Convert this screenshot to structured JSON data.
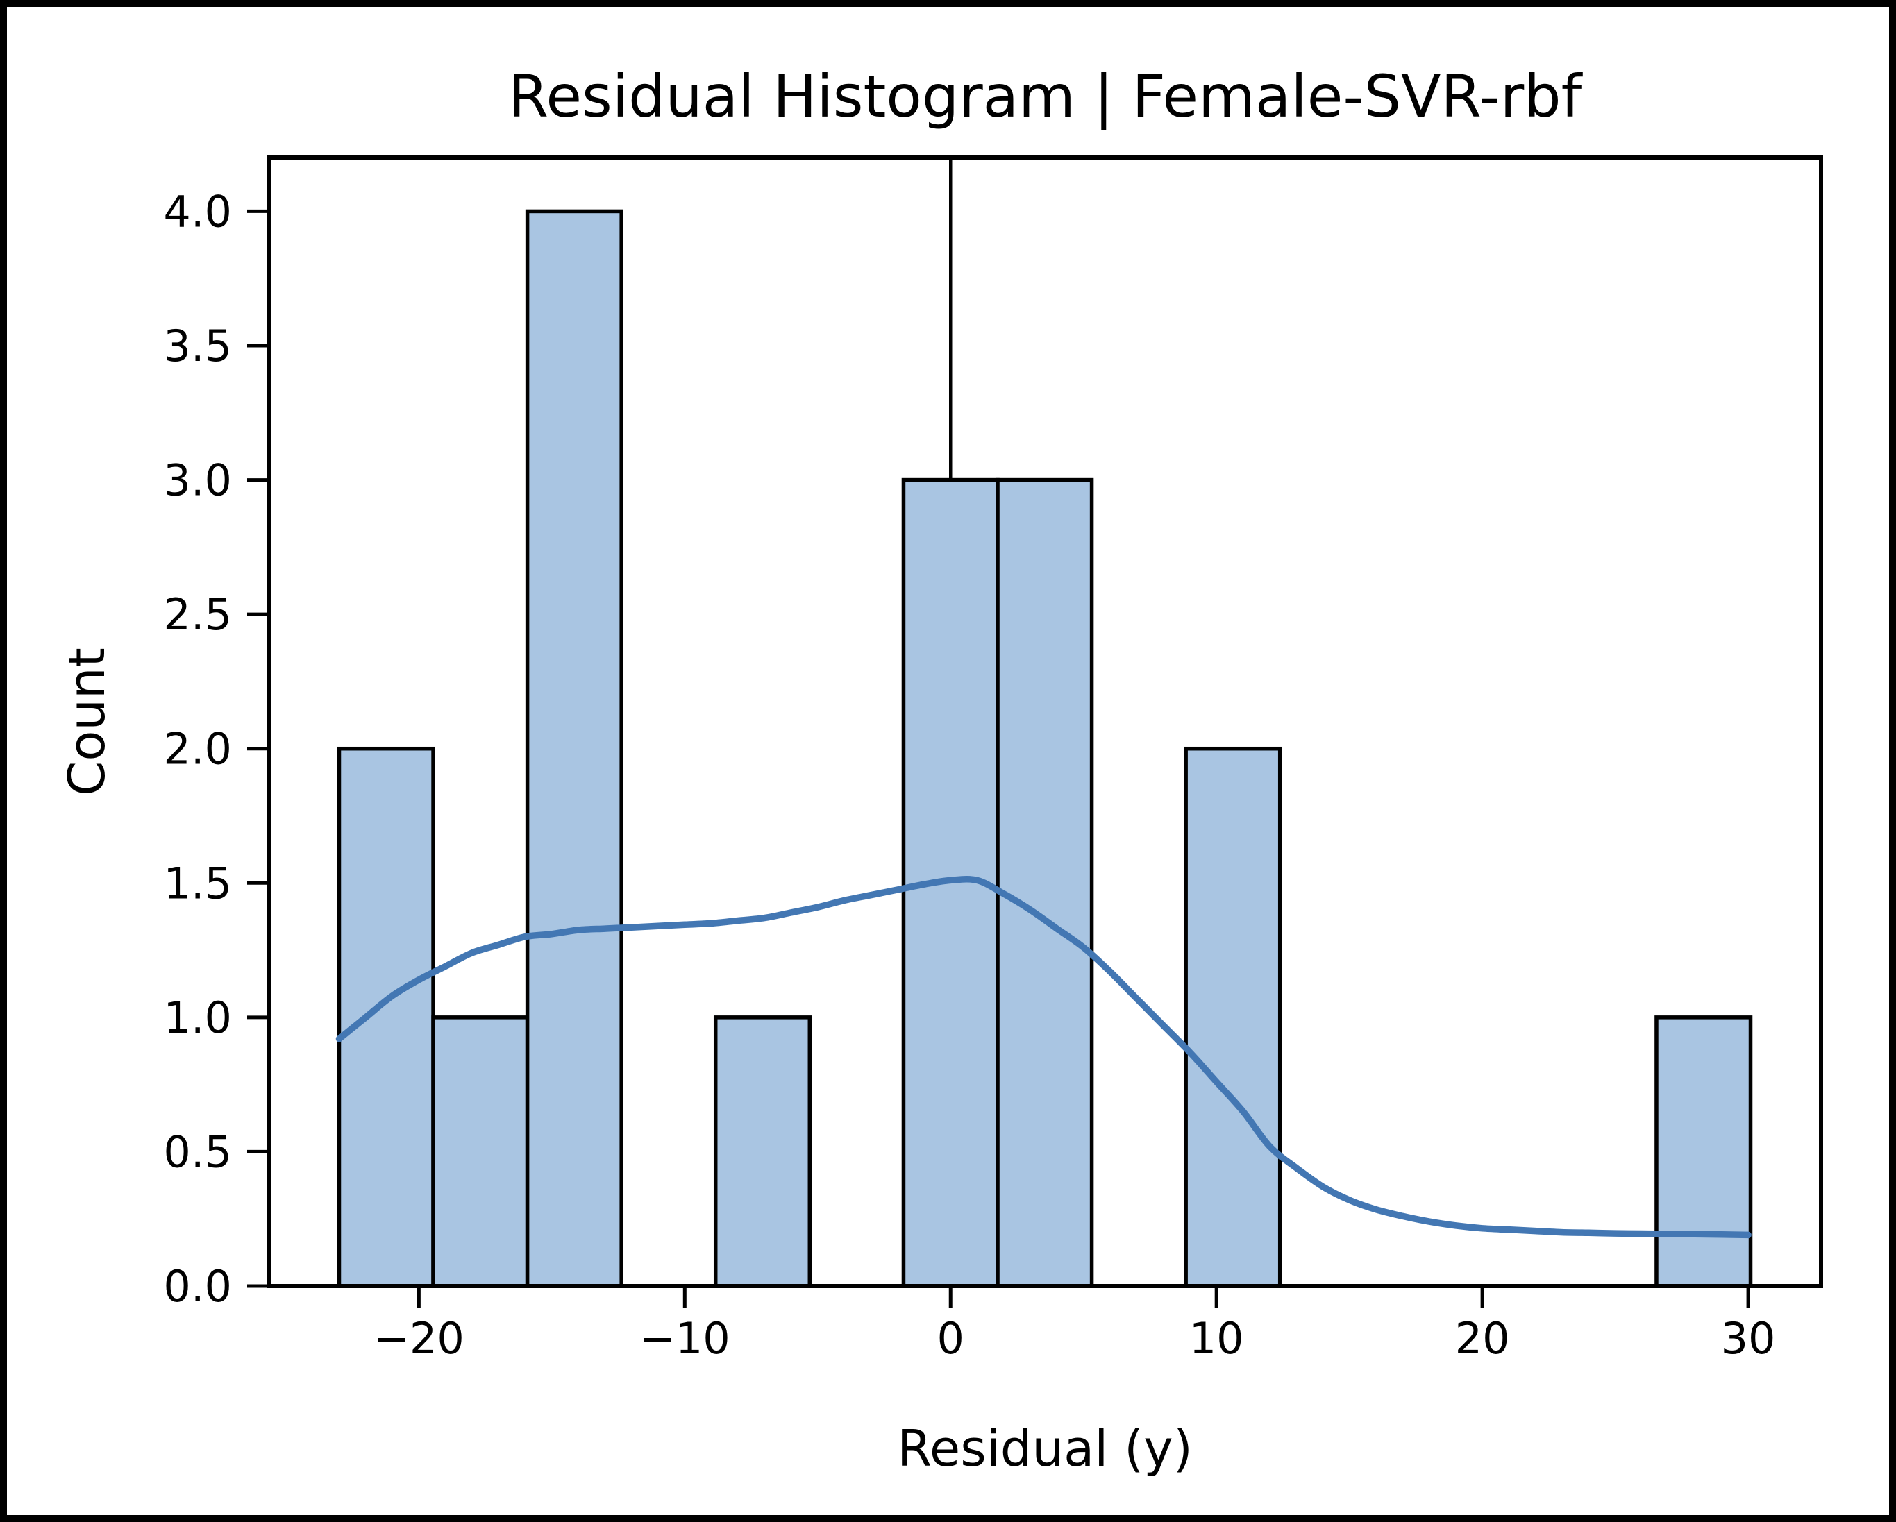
{
  "figure": {
    "background": "#ffffff",
    "frame_color": "#000000"
  },
  "chart_data": {
    "type": "bar",
    "subtype": "histogram_with_kde",
    "title": "Residual Histogram | Female-SVR-rbf",
    "xlabel": "Residual (y)",
    "ylabel": "Count",
    "xlim": [
      -25.65,
      32.74
    ],
    "ylim": [
      0,
      4.2
    ],
    "grid": false,
    "legend": null,
    "x_ticks": [
      {
        "value": -20,
        "label": "−20"
      },
      {
        "value": -10,
        "label": "−10"
      },
      {
        "value": 0,
        "label": "0"
      },
      {
        "value": 10,
        "label": "10"
      },
      {
        "value": 20,
        "label": "20"
      },
      {
        "value": 30,
        "label": "30"
      }
    ],
    "y_ticks": [
      {
        "value": 0.0,
        "label": "0.0"
      },
      {
        "value": 0.5,
        "label": "0.5"
      },
      {
        "value": 1.0,
        "label": "1.0"
      },
      {
        "value": 1.5,
        "label": "1.5"
      },
      {
        "value": 2.0,
        "label": "2.0"
      },
      {
        "value": 2.5,
        "label": "2.5"
      },
      {
        "value": 3.0,
        "label": "3.0"
      },
      {
        "value": 3.5,
        "label": "3.5"
      },
      {
        "value": 4.0,
        "label": "4.0"
      }
    ],
    "bin_edges": [
      -23.0,
      -19.46,
      -15.92,
      -12.38,
      -8.84,
      -5.3,
      -1.77,
      1.77,
      5.31,
      8.85,
      12.39,
      15.93,
      19.47,
      23.01,
      26.55,
      30.09
    ],
    "bin_counts": [
      2,
      1,
      4,
      0,
      1,
      0,
      3,
      3,
      0,
      2,
      0,
      0,
      0,
      0,
      1
    ],
    "vline_x": 0,
    "kde": {
      "x": [
        -23,
        -22,
        -21,
        -20,
        -19,
        -18,
        -17,
        -16,
        -15,
        -14,
        -13,
        -12,
        -11,
        -10,
        -9,
        -8,
        -7,
        -6,
        -5,
        -4,
        -3,
        -2,
        -1,
        0,
        1,
        2,
        3,
        4,
        5,
        6,
        7,
        8,
        9,
        10,
        11,
        12,
        13,
        14,
        15,
        16,
        17,
        18,
        19,
        20,
        21,
        22,
        23,
        24,
        25,
        26,
        27,
        28,
        29,
        30
      ],
      "y": [
        0.92,
        1.0,
        1.08,
        1.14,
        1.19,
        1.24,
        1.27,
        1.3,
        1.31,
        1.325,
        1.33,
        1.335,
        1.34,
        1.345,
        1.35,
        1.36,
        1.37,
        1.39,
        1.41,
        1.435,
        1.455,
        1.475,
        1.495,
        1.51,
        1.51,
        1.46,
        1.4,
        1.33,
        1.26,
        1.17,
        1.07,
        0.97,
        0.87,
        0.76,
        0.65,
        0.52,
        0.44,
        0.37,
        0.32,
        0.285,
        0.26,
        0.24,
        0.225,
        0.215,
        0.21,
        0.205,
        0.2,
        0.198,
        0.196,
        0.195,
        0.194,
        0.193,
        0.192,
        0.19
      ]
    },
    "colors": {
      "bar_fill": "#A9C5E2",
      "bar_edge": "#000000",
      "kde_line": "#4377B3",
      "vline": "#000000",
      "axis": "#000000"
    }
  }
}
